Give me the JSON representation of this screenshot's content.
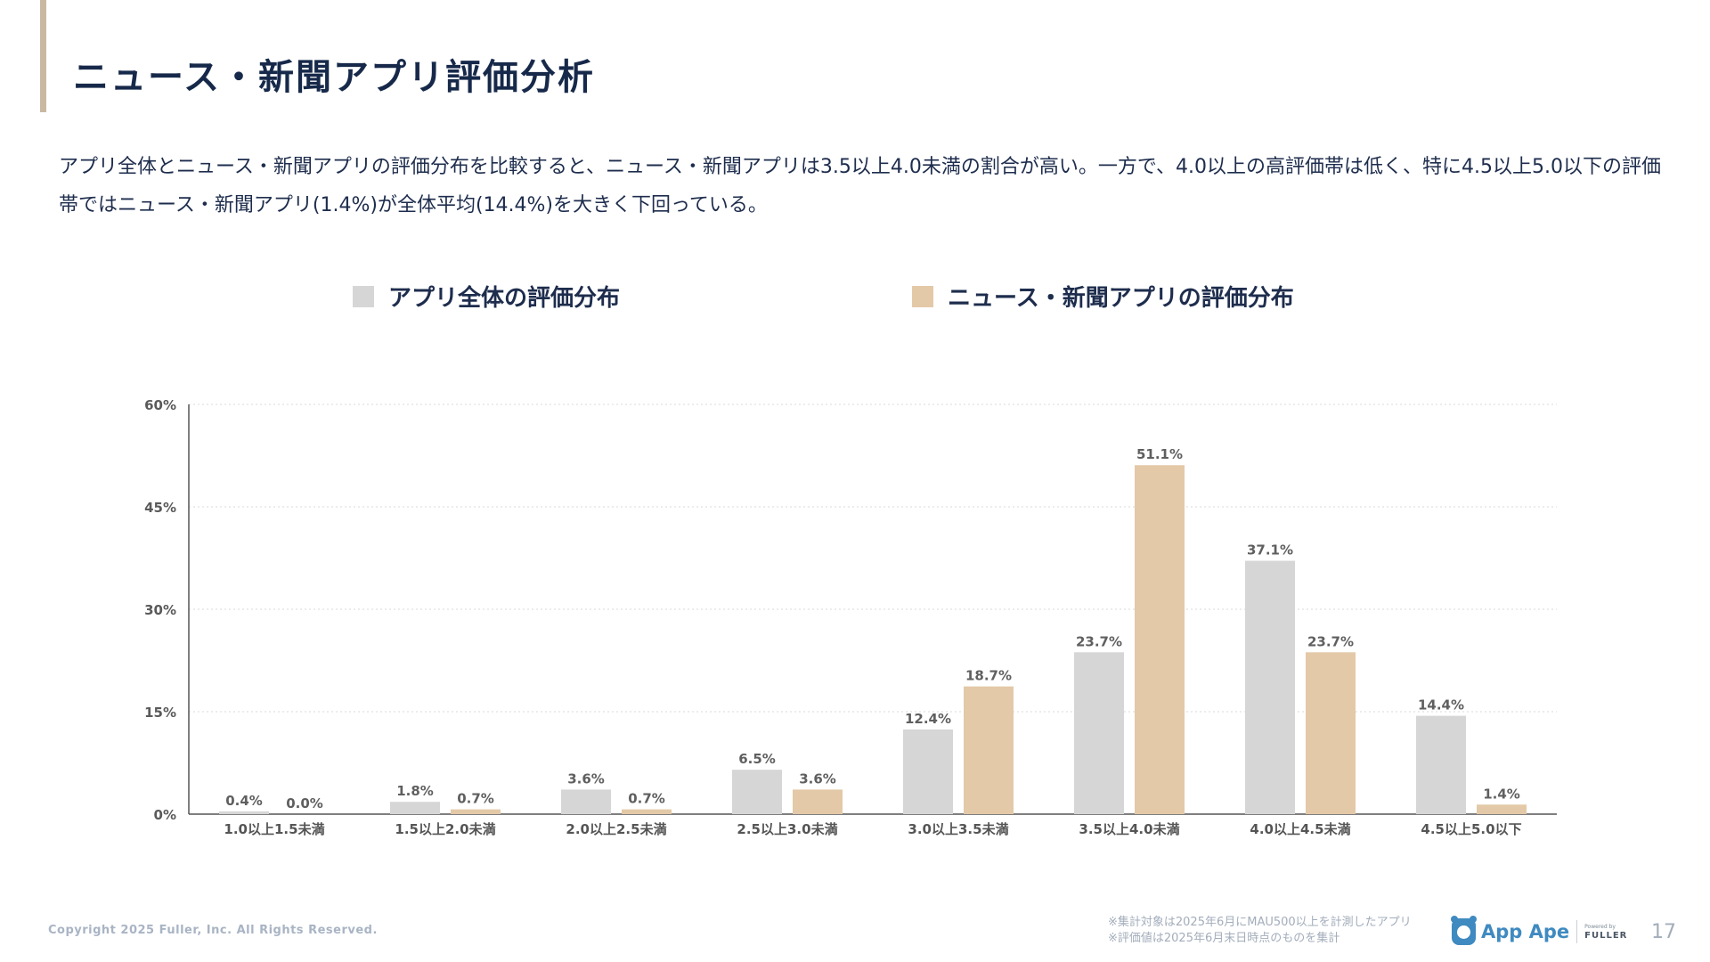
{
  "page": {
    "title": "ニュース・新聞アプリ評価分析",
    "description": "アプリ全体とニュース・新聞アプリの評価分布を比較すると、ニュース・新聞アプリは3.5以上4.0未満の割合が高い。一方で、4.0以上の高評価帯は低く、特に4.5以上5.0以下の評価帯ではニュース・新聞アプリ(1.4%)が全体平均(14.4%)を大きく下回っている。",
    "copyright": "Copyright 2025 Fuller, Inc. All Rights Reserved.",
    "note_1": "※集計対象は2025年6月にMAU500以上を計測したアプリ",
    "note_2": "※評価値は2025年6月末日時点のものを集計",
    "logo_text": "App Ape",
    "powered_by": "Powered by",
    "powered_brand": "FULLER",
    "page_number": "17"
  },
  "colors": {
    "accent": "#c9b8a2",
    "all_apps": "#d6d6d6",
    "news_apps": "#e3c9a7",
    "title": "#17294a",
    "brand_blue": "#3f8ac0"
  },
  "chart_data": {
    "type": "bar",
    "categories": [
      "1.0以上1.5未満",
      "1.5以上2.0未満",
      "2.0以上2.5未満",
      "2.5以上3.0未満",
      "3.0以上3.5未満",
      "3.5以上4.0未満",
      "4.0以上4.5未満",
      "4.5以上5.0以下"
    ],
    "series": [
      {
        "name": "アプリ全体の評価分布",
        "values": [
          0.4,
          1.8,
          3.6,
          6.5,
          12.4,
          23.7,
          37.1,
          14.4
        ],
        "labels": [
          "0.4%",
          "1.8%",
          "3.6%",
          "6.5%",
          "12.4%",
          "23.7%",
          "37.1%",
          "14.4%"
        ]
      },
      {
        "name": "ニュース・新聞アプリの評価分布",
        "values": [
          0.0,
          0.7,
          0.7,
          3.6,
          18.7,
          51.1,
          23.7,
          1.4
        ],
        "labels": [
          "0.0%",
          "0.7%",
          "0.7%",
          "3.6%",
          "18.7%",
          "51.1%",
          "23.7%",
          "1.4%"
        ]
      }
    ],
    "y_ticks": [
      0,
      15,
      30,
      45,
      60
    ],
    "y_tick_labels": [
      "0%",
      "15%",
      "30%",
      "45%",
      "60%"
    ],
    "ylim": [
      0,
      60
    ],
    "grid": true,
    "legend_position": "top",
    "title": "",
    "xlabel": "",
    "ylabel": ""
  }
}
